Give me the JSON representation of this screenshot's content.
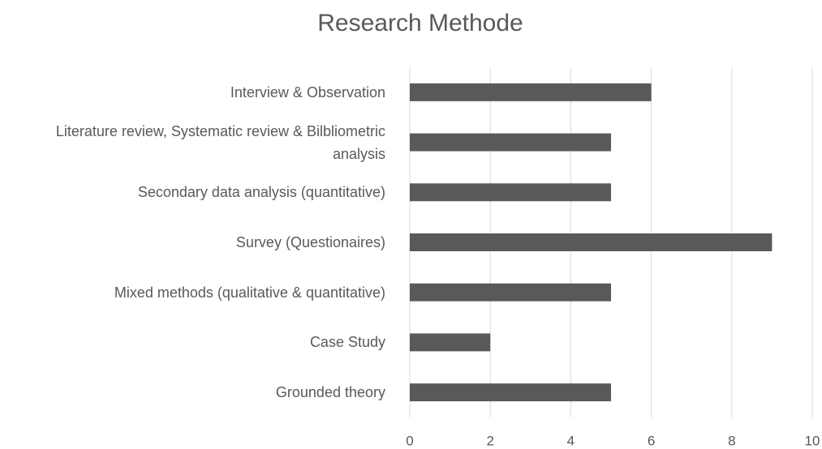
{
  "chart_data": {
    "type": "bar",
    "orientation": "horizontal",
    "title": "Research Methode",
    "categories": [
      "Interview & Observation",
      "Literature review, Systematic review & Bilbliometric analysis",
      "Secondary data analysis (quantitative)",
      "Survey (Questionaires)",
      "Mixed methods (qualitative & quantitative)",
      "Case Study",
      "Grounded theory"
    ],
    "values": [
      6,
      5,
      5,
      9,
      5,
      2,
      5
    ],
    "color": "#595959",
    "xlim": [
      0,
      10
    ],
    "xticks": [
      0,
      2,
      4,
      6,
      8,
      10
    ],
    "grid": true
  }
}
